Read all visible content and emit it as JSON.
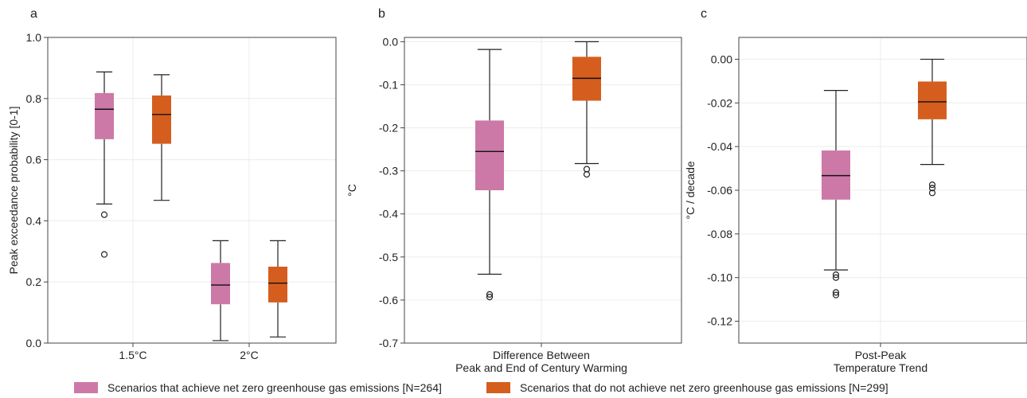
{
  "colors": {
    "pink": "#cc79a7",
    "orange": "#d55e1f",
    "grid": "#ececec",
    "axis": "#444444"
  },
  "legend": {
    "item_pink": "Scenarios that achieve net zero greenhouse gas emissions [N=264]",
    "item_orange": "Scenarios that do not achieve net zero greenhouse gas emissions [N=299]"
  },
  "chart_data": [
    {
      "type": "box",
      "panel_label": "a",
      "ylabel": "Peak exceedance probability [0-1]",
      "xlabel": "",
      "ylim": [
        0,
        1.0
      ],
      "yticks": [
        "0.0",
        "0.2",
        "0.4",
        "0.6",
        "0.8",
        "1.0"
      ],
      "ytick_values": [
        0,
        0.2,
        0.4,
        0.6,
        0.8,
        1.0
      ],
      "categories": [
        "1.5°C",
        "2°C"
      ],
      "series": [
        {
          "color_key": "pink",
          "boxes": [
            {
              "category": "1.5°C",
              "whislo": 0.455,
              "q1": 0.667,
              "med": 0.765,
              "q3": 0.818,
              "whishi": 0.887,
              "fliers": [
                0.42,
                0.29
              ]
            },
            {
              "category": "2°C",
              "whislo": 0.008,
              "q1": 0.127,
              "med": 0.19,
              "q3": 0.262,
              "whishi": 0.335,
              "fliers": []
            }
          ]
        },
        {
          "color_key": "orange",
          "boxes": [
            {
              "category": "1.5°C",
              "whislo": 0.467,
              "q1": 0.652,
              "med": 0.748,
              "q3": 0.81,
              "whishi": 0.878,
              "fliers": []
            },
            {
              "category": "2°C",
              "whislo": 0.02,
              "q1": 0.133,
              "med": 0.196,
              "q3": 0.25,
              "whishi": 0.335,
              "fliers": []
            }
          ]
        }
      ]
    },
    {
      "type": "box",
      "panel_label": "b",
      "ylabel": "°C",
      "xlabel_lines": [
        "Difference Between",
        "Peak and End of Century Warming"
      ],
      "ylim": [
        -0.7,
        0.01
      ],
      "yticks": [
        "0.0",
        "-0.1",
        "-0.2",
        "-0.3",
        "-0.4",
        "-0.5",
        "-0.6",
        "-0.7"
      ],
      "ytick_values": [
        0,
        -0.1,
        -0.2,
        -0.3,
        -0.4,
        -0.5,
        -0.6,
        -0.7
      ],
      "categories": [
        ""
      ],
      "series": [
        {
          "color_key": "pink",
          "boxes": [
            {
              "category": "",
              "whislo": -0.54,
              "q1": -0.345,
              "med": -0.255,
              "q3": -0.183,
              "whishi": -0.018,
              "fliers": [
                -0.587,
                -0.593
              ]
            }
          ]
        },
        {
          "color_key": "orange",
          "boxes": [
            {
              "category": "",
              "whislo": -0.283,
              "q1": -0.137,
              "med": -0.085,
              "q3": -0.035,
              "whishi": 0.0,
              "fliers": [
                -0.296,
                -0.308
              ]
            }
          ]
        }
      ]
    },
    {
      "type": "box",
      "panel_label": "c",
      "ylabel": "°C / decade",
      "xlabel_lines": [
        "Post-Peak",
        "Temperature Trend"
      ],
      "ylim": [
        -0.13,
        0.01
      ],
      "yticks": [
        "0.00",
        "-0.02",
        "-0.04",
        "-0.06",
        "-0.08",
        "-0.10",
        "-0.12"
      ],
      "ytick_values": [
        0,
        -0.02,
        -0.04,
        -0.06,
        -0.08,
        -0.1,
        -0.12
      ],
      "categories": [
        ""
      ],
      "series": [
        {
          "color_key": "pink",
          "boxes": [
            {
              "category": "",
              "whislo": -0.0965,
              "q1": -0.0643,
              "med": -0.0533,
              "q3": -0.0418,
              "whishi": -0.0143,
              "fliers": [
                -0.0987,
                -0.1,
                -0.1068,
                -0.108
              ]
            }
          ]
        },
        {
          "color_key": "orange",
          "boxes": [
            {
              "category": "",
              "whislo": -0.0482,
              "q1": -0.0275,
              "med": -0.0195,
              "q3": -0.0102,
              "whishi": 0.0,
              "fliers": [
                -0.0575,
                -0.059,
                -0.0612
              ]
            }
          ]
        }
      ]
    }
  ]
}
